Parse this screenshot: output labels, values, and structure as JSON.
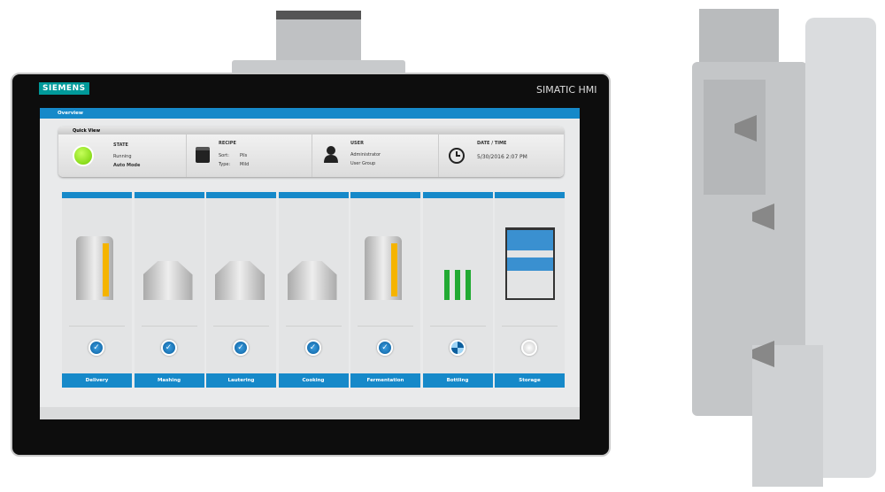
{
  "device": {
    "logo": "SIEMENS",
    "brand": "SIMATIC HMI"
  },
  "header": {
    "title": "Overview"
  },
  "quick_view": {
    "title": "Quick View",
    "state": {
      "label": "STATE",
      "status": "Running",
      "mode": "Auto Mode",
      "indicator_color": "#8ee000"
    },
    "recipe": {
      "label": "RECIPE",
      "sort_label": "Sort:",
      "sort_value": "Pils",
      "type_label": "Type:",
      "type_value": "Mild"
    },
    "user": {
      "label": "USER",
      "name": "Administrator",
      "group": "User Group"
    },
    "datetime": {
      "label": "DATE / TIME",
      "value": "5/30/2016 2:07 PM"
    }
  },
  "process_steps": [
    {
      "label": "Delivery",
      "status": "done"
    },
    {
      "label": "Mashing",
      "status": "done"
    },
    {
      "label": "Lautering",
      "status": "done"
    },
    {
      "label": "Cooking",
      "status": "done"
    },
    {
      "label": "Fermentation",
      "status": "done"
    },
    {
      "label": "Bottling",
      "status": "in-progress"
    },
    {
      "label": "Storage",
      "status": "idle"
    }
  ],
  "colors": {
    "accent": "#1689c9",
    "bezel": "#0d0d0d",
    "screen_bg": "#e9eaeb"
  }
}
